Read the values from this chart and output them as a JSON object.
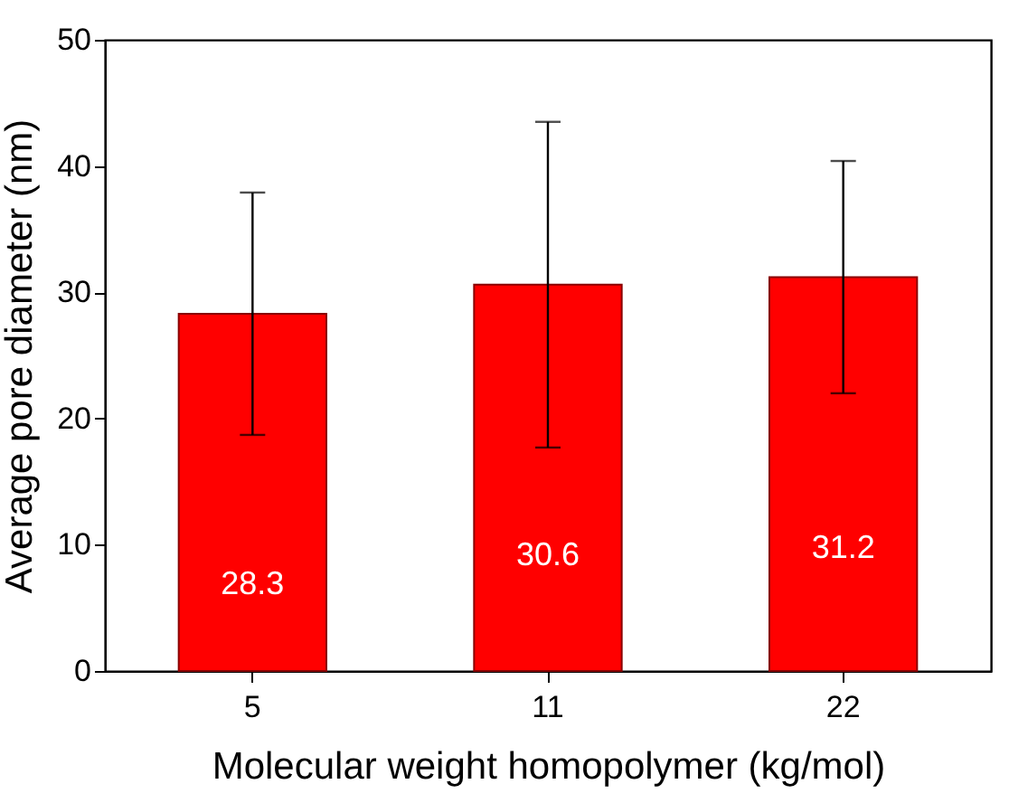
{
  "chart_data": {
    "type": "bar",
    "xlabel": "Molecular weight homopolymer (kg/mol)",
    "ylabel": "Average pore diameter (nm)",
    "categories": [
      "5",
      "11",
      "22"
    ],
    "values": [
      28.3,
      30.6,
      31.2
    ],
    "errors": [
      9.6,
      12.9,
      9.2
    ],
    "color": "#ff0000",
    "data_labels": true,
    "ylim": [
      0,
      50
    ],
    "yticks": [
      0,
      10,
      20,
      30,
      40,
      50
    ],
    "grid": false
  }
}
